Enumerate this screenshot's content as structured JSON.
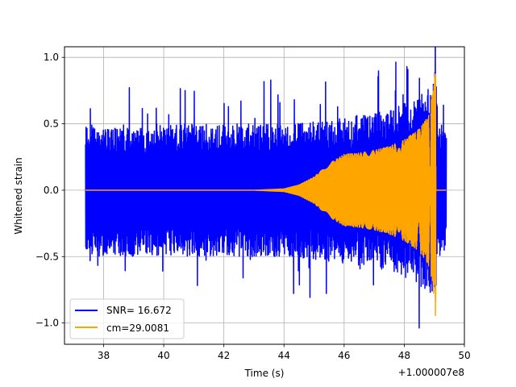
{
  "chart_data": {
    "type": "line",
    "xlabel": "Time (s)",
    "ylabel": "Whitened strain",
    "x_offset_label": "+1.000007e8",
    "xlim": [
      36.7,
      50.0
    ],
    "ylim": [
      -1.16,
      1.08
    ],
    "x_ticks": [
      38,
      40,
      42,
      44,
      46,
      48,
      50
    ],
    "x_tick_labels": [
      "38",
      "40",
      "42",
      "44",
      "46",
      "48",
      "50"
    ],
    "y_ticks": [
      -1.0,
      -0.5,
      0.0,
      0.5,
      1.0
    ],
    "y_tick_labels": [
      "−1.0",
      "−0.5",
      "0.0",
      "0.5",
      "1.0"
    ],
    "grid": true,
    "legend_position": "lower-left",
    "series": [
      {
        "name": "SNR= 16.672",
        "color": "#0000ff",
        "description_points": {
          "x": [
            37.4,
            38.0,
            39.0,
            40.0,
            41.0,
            42.0,
            43.0,
            44.0,
            45.0,
            46.0,
            47.0,
            47.5,
            48.0,
            48.5,
            48.9,
            49.05,
            49.1,
            49.4
          ],
          "envelope_upper": [
            0.5,
            0.5,
            0.5,
            0.5,
            0.5,
            0.5,
            0.5,
            0.5,
            0.52,
            0.55,
            0.58,
            0.62,
            0.66,
            0.72,
            0.8,
            0.95,
            0.5,
            0.5
          ],
          "envelope_lower": [
            -0.5,
            -0.5,
            -0.5,
            -0.5,
            -0.5,
            -0.5,
            -0.5,
            -0.5,
            -0.52,
            -0.55,
            -0.58,
            -0.62,
            -0.66,
            -0.72,
            -0.8,
            -0.95,
            -0.5,
            -0.5
          ]
        }
      },
      {
        "name": "cm=29.0081",
        "color": "#ffa500",
        "description_points": {
          "x": [
            37.4,
            43.0,
            44.0,
            44.5,
            45.0,
            45.5,
            46.0,
            46.5,
            47.0,
            47.5,
            48.0,
            48.5,
            48.8,
            49.0,
            49.05,
            49.1,
            49.4
          ],
          "envelope": [
            0.0,
            0.0,
            0.01,
            0.04,
            0.1,
            0.2,
            0.27,
            0.28,
            0.3,
            0.33,
            0.38,
            0.46,
            0.56,
            0.8,
            1.0,
            0.0,
            0.0
          ]
        }
      }
    ]
  }
}
